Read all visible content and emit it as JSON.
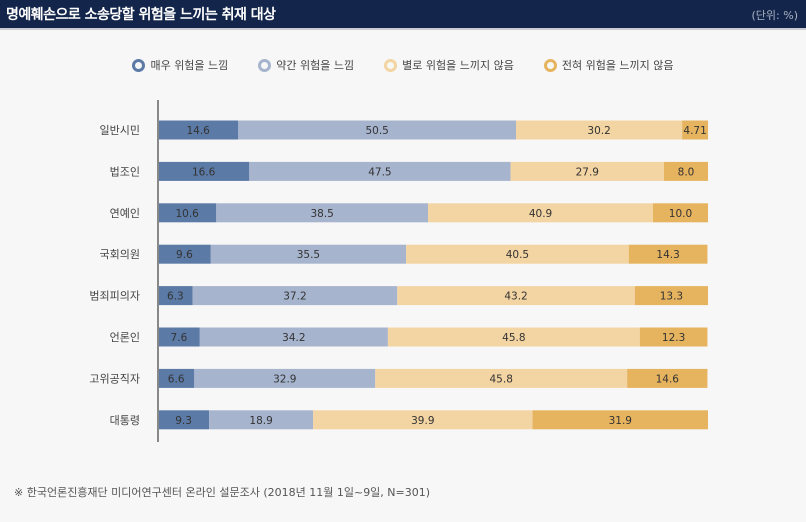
{
  "header": {
    "title": "명예훼손으로 소송당할 위험을 느끼는 취재 대상",
    "unit": "(단위: %)"
  },
  "footer": "※ 한국언론진흥재단 미디어연구센터 온라인 설문조사 (2018년 11월 1일~9일, N=301)",
  "chart_data": {
    "type": "bar",
    "orientation": "horizontal-stacked",
    "categories": [
      "일반시민",
      "법조인",
      "연예인",
      "국회의원",
      "범죄피의자",
      "언론인",
      "고위공직자",
      "대통령"
    ],
    "series": [
      {
        "name": "매우 위험을 느낌",
        "color": "#5b7aa6",
        "values": [
          14.6,
          16.6,
          10.6,
          9.6,
          6.3,
          7.6,
          6.6,
          9.3
        ],
        "labels": [
          "14.6",
          "16.6",
          "10.6",
          "9.6",
          "6.3",
          "7.6",
          "6.6",
          "9.3"
        ]
      },
      {
        "name": "약간 위험을 느낌",
        "color": "#a7b4ce",
        "values": [
          50.5,
          47.5,
          38.5,
          35.5,
          37.2,
          34.2,
          32.9,
          18.9
        ],
        "labels": [
          "50.5",
          "47.5",
          "38.5",
          "35.5",
          "37.2",
          "34.2",
          "32.9",
          "18.9"
        ]
      },
      {
        "name": "별로 위험을 느끼지 않음",
        "color": "#f3d4a3",
        "values": [
          30.2,
          27.9,
          40.9,
          40.5,
          43.2,
          45.8,
          45.8,
          39.9
        ],
        "labels": [
          "30.2",
          "27.9",
          "40.9",
          "40.5",
          "43.2",
          "45.8",
          "45.8",
          "39.9"
        ]
      },
      {
        "name": "전혀 위험을 느끼지 않음",
        "color": "#e6b35f",
        "values": [
          4.71,
          8.0,
          10.0,
          14.3,
          13.3,
          12.3,
          14.6,
          31.9
        ],
        "labels": [
          "4.71",
          "8.0",
          "10.0",
          "14.3",
          "13.3",
          "12.3",
          "14.6",
          "31.9"
        ]
      }
    ],
    "xlim": [
      0,
      100
    ],
    "legend": "top",
    "grid": false
  }
}
